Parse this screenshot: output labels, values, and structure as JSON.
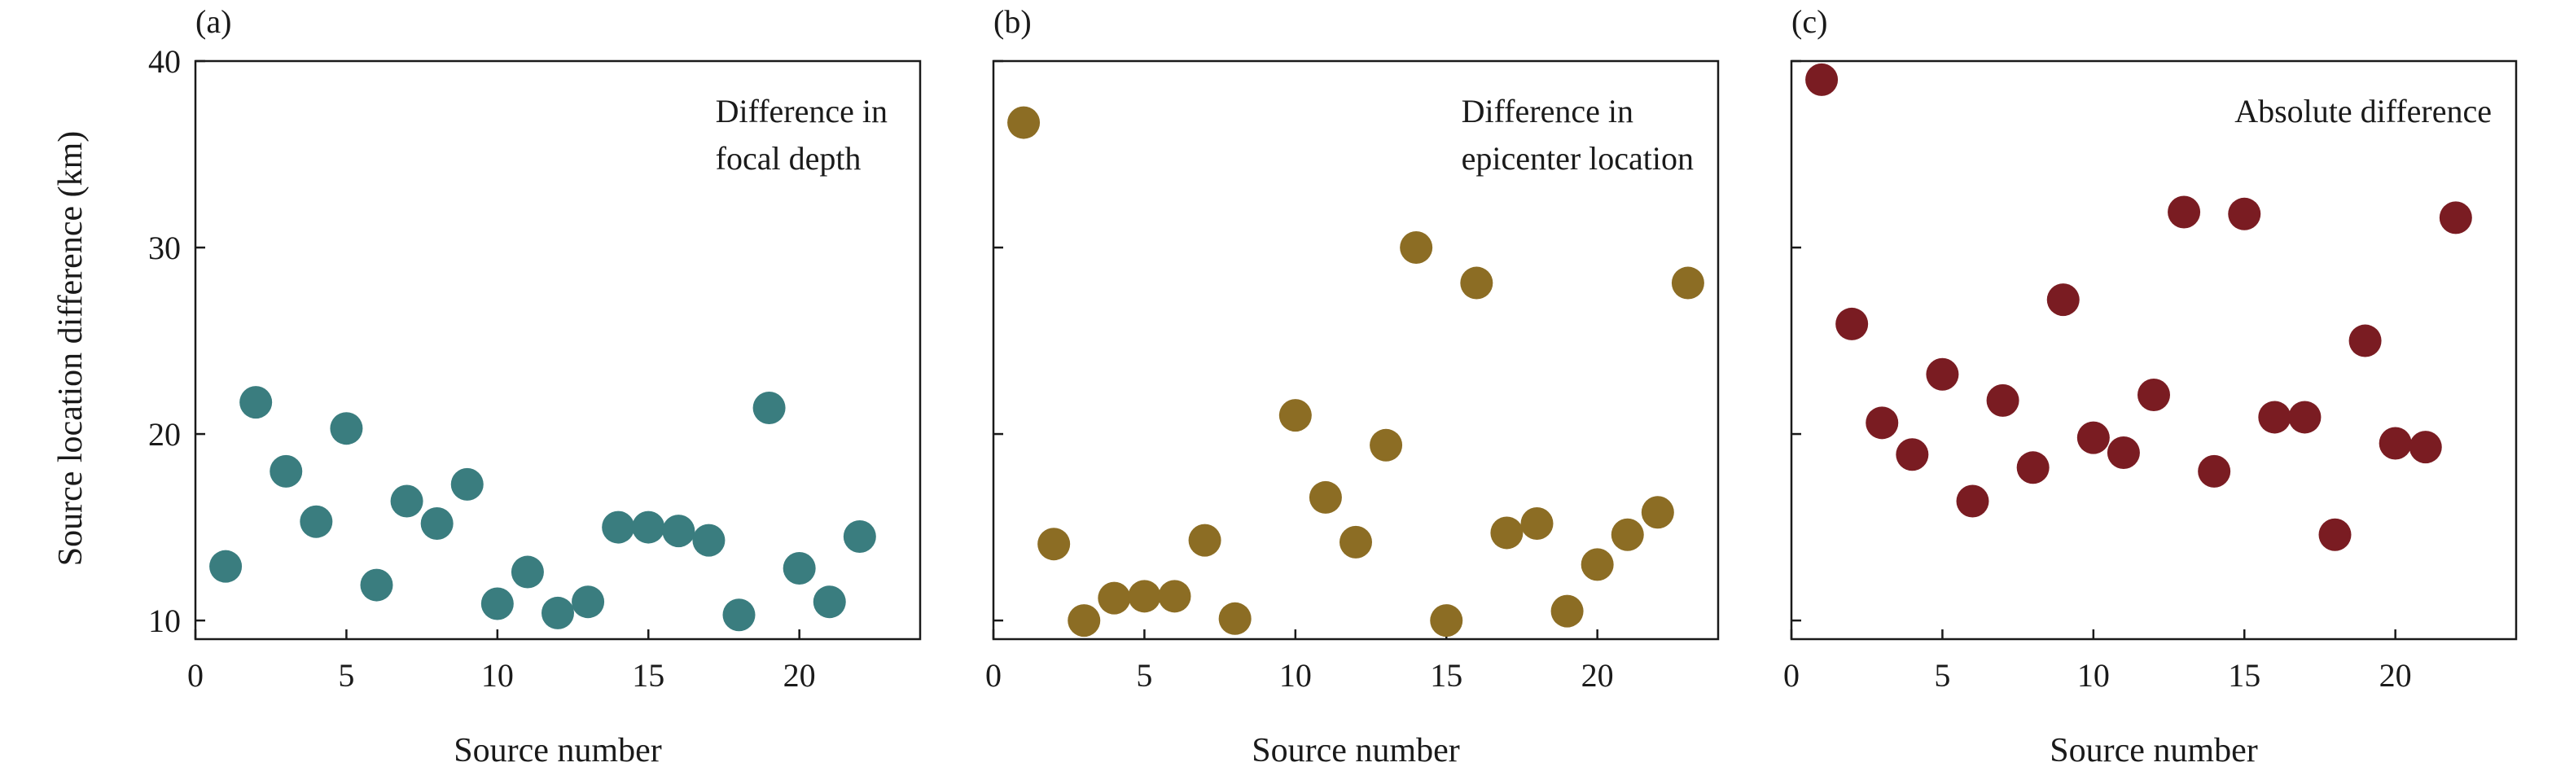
{
  "ylabel": "Source location difference (km)",
  "chart_data": [
    {
      "type": "scatter",
      "panel_label": "(a)",
      "annotation": [
        "Difference in",
        "focal depth"
      ],
      "xlabel": "Source number",
      "xlim": [
        0,
        24
      ],
      "ylim": [
        9,
        40
      ],
      "xticks": [
        0,
        5,
        10,
        15,
        20
      ],
      "yticks": [
        10,
        20,
        30,
        40
      ],
      "show_ytick_labels": true,
      "color": "#3a7d7f",
      "x": [
        1,
        2,
        3,
        4,
        5,
        6,
        7,
        8,
        9,
        10,
        11,
        12,
        13,
        14,
        15,
        16,
        17,
        18,
        19,
        20,
        21,
        22
      ],
      "y": [
        12.9,
        21.7,
        18.0,
        15.3,
        20.3,
        11.9,
        16.4,
        15.2,
        17.3,
        10.9,
        12.6,
        10.4,
        11.0,
        15.0,
        15.0,
        14.8,
        14.3,
        10.3,
        21.4,
        12.8,
        11.0,
        14.5
      ]
    },
    {
      "type": "scatter",
      "panel_label": "(b)",
      "annotation": [
        "Difference in",
        "epicenter location"
      ],
      "xlabel": "Source number",
      "xlim": [
        0,
        24
      ],
      "ylim": [
        9,
        40
      ],
      "xticks": [
        0,
        5,
        10,
        15,
        20
      ],
      "yticks": [
        10,
        20,
        30,
        40
      ],
      "show_ytick_labels": false,
      "color": "#8c6d24",
      "x": [
        1,
        2,
        3,
        4,
        5,
        6,
        7,
        8,
        10,
        11,
        12,
        13,
        14,
        15,
        16,
        17,
        18,
        19,
        20,
        21,
        22,
        23
      ],
      "y": [
        36.7,
        14.1,
        10.0,
        11.2,
        11.3,
        11.3,
        14.3,
        10.1,
        21.0,
        16.6,
        14.2,
        19.4,
        30.0,
        10.0,
        28.1,
        14.7,
        15.2,
        10.5,
        13.0,
        14.6,
        15.8,
        28.1
      ]
    },
    {
      "type": "scatter",
      "panel_label": "(c)",
      "annotation": [
        "Absolute difference"
      ],
      "xlabel": "Source number",
      "xlim": [
        0,
        24
      ],
      "ylim": [
        9,
        40
      ],
      "xticks": [
        0,
        5,
        10,
        15,
        20
      ],
      "yticks": [
        10,
        20,
        30,
        40
      ],
      "show_ytick_labels": false,
      "color": "#7a1c22",
      "x": [
        1,
        2,
        3,
        4,
        5,
        6,
        7,
        8,
        9,
        10,
        11,
        12,
        13,
        14,
        15,
        16,
        17,
        18,
        19,
        20,
        21,
        22
      ],
      "y": [
        39.0,
        25.9,
        20.6,
        18.9,
        23.2,
        16.4,
        21.8,
        18.2,
        27.2,
        19.8,
        19.0,
        22.1,
        31.9,
        18.0,
        31.8,
        20.9,
        20.9,
        14.6,
        25.0,
        19.5,
        19.3,
        31.6
      ]
    }
  ]
}
